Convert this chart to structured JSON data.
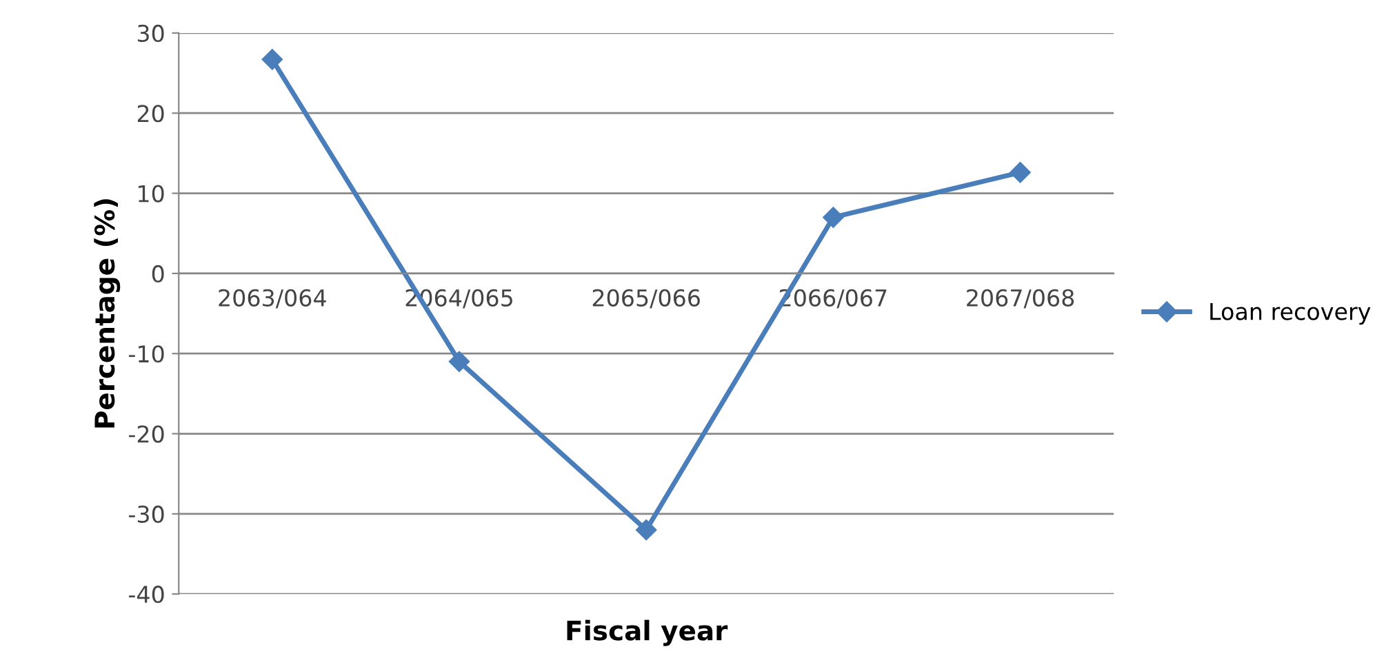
{
  "chart_data": {
    "type": "line",
    "xlabel": "Fiscal year",
    "ylabel": "Percentage (%)",
    "categories": [
      "2063/064",
      "2064/065",
      "2065/066",
      "2066/067",
      "2067/068"
    ],
    "series": [
      {
        "name": "Loan recovery",
        "color": "#4a7ebb",
        "values": [
          26.7,
          -11,
          -32,
          7,
          12.6
        ]
      }
    ],
    "ylim": [
      -40,
      30
    ],
    "yticks": [
      -40,
      -30,
      -20,
      -10,
      0,
      10,
      20,
      30
    ],
    "grid": "y",
    "legend": "right",
    "marker": "diamond",
    "line_style": "solid"
  }
}
